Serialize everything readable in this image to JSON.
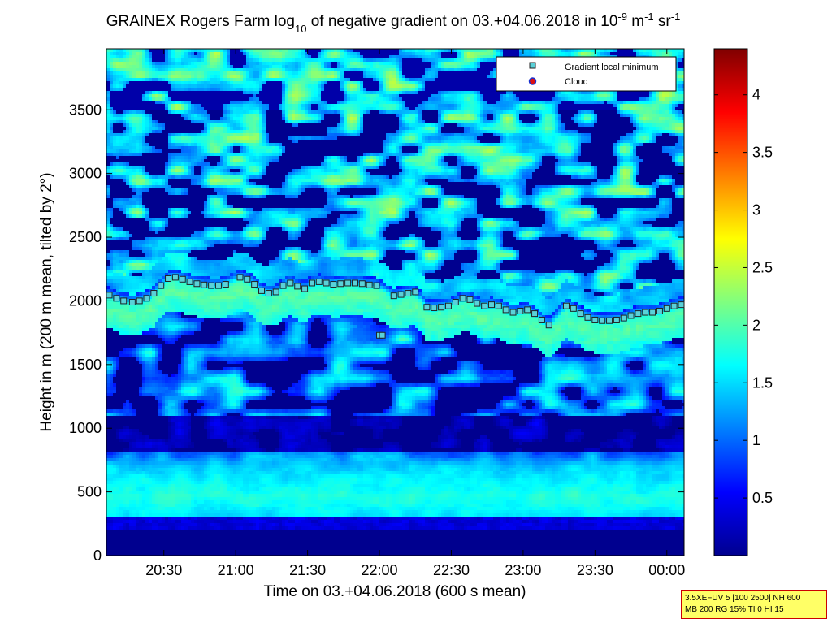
{
  "chart_data": {
    "type": "heatmap",
    "title_parts": [
      "GRAINEX Rogers Farm log",
      "10",
      " of negative gradient on 03.+04.06.2018 in 10",
      "-9",
      " m",
      "-1",
      " sr",
      "-1"
    ],
    "xlabel": "Time on 03.+04.06.2018 (600 s mean)",
    "ylabel": "Height in m (200 m mean, tilted by 2°)",
    "x_ticks": [
      "20:30",
      "21:00",
      "21:30",
      "22:00",
      "22:30",
      "23:00",
      "23:30",
      "00:00"
    ],
    "x_tick_hours": [
      20.5,
      21.0,
      21.5,
      22.0,
      22.5,
      23.0,
      23.5,
      24.0
    ],
    "xlim": [
      20.1,
      24.12
    ],
    "y_ticks": [
      "0",
      "500",
      "1000",
      "1500",
      "2000",
      "2500",
      "3000",
      "3500"
    ],
    "y_tick_values": [
      0,
      500,
      1000,
      1500,
      2000,
      2500,
      3000,
      3500
    ],
    "ylim": [
      0,
      3980
    ],
    "colorbar": {
      "ticks": [
        "0.5",
        "1",
        "1.5",
        "2",
        "2.5",
        "3",
        "3.5",
        "4"
      ],
      "tick_values": [
        0.5,
        1,
        1.5,
        2,
        2.5,
        3,
        3.5,
        4
      ],
      "range": [
        0,
        4.4
      ],
      "colormap": "jet"
    },
    "legend": {
      "placement": "top-right",
      "entries": [
        {
          "label": "Gradient local minimum",
          "marker": "square",
          "color": "#5ad1d8"
        },
        {
          "label": "Cloud",
          "marker": "circle",
          "color": "#dd1111"
        }
      ]
    },
    "series": [
      {
        "name": "Gradient local minimum",
        "points": [
          [
            20.12,
            2045
          ],
          [
            20.17,
            2020
          ],
          [
            20.22,
            2000
          ],
          [
            20.28,
            1990
          ],
          [
            20.33,
            2000
          ],
          [
            20.38,
            2020
          ],
          [
            20.43,
            2060
          ],
          [
            20.48,
            2120
          ],
          [
            20.53,
            2175
          ],
          [
            20.58,
            2185
          ],
          [
            20.63,
            2170
          ],
          [
            20.68,
            2150
          ],
          [
            20.73,
            2135
          ],
          [
            20.78,
            2125
          ],
          [
            20.83,
            2120
          ],
          [
            20.88,
            2120
          ],
          [
            20.93,
            2130
          ],
          [
            21.03,
            2185
          ],
          [
            21.08,
            2170
          ],
          [
            21.13,
            2130
          ],
          [
            21.18,
            2080
          ],
          [
            21.23,
            2060
          ],
          [
            21.28,
            2070
          ],
          [
            21.33,
            2120
          ],
          [
            21.38,
            2140
          ],
          [
            21.43,
            2115
          ],
          [
            21.48,
            2095
          ],
          [
            21.53,
            2140
          ],
          [
            21.58,
            2150
          ],
          [
            21.63,
            2140
          ],
          [
            21.68,
            2130
          ],
          [
            21.73,
            2135
          ],
          [
            21.78,
            2140
          ],
          [
            21.83,
            2140
          ],
          [
            21.88,
            2135
          ],
          [
            21.93,
            2125
          ],
          [
            21.98,
            2120
          ],
          [
            22.0,
            1730
          ],
          [
            22.02,
            1730
          ],
          [
            22.1,
            2040
          ],
          [
            22.15,
            2050
          ],
          [
            22.2,
            2060
          ],
          [
            22.25,
            2070
          ],
          [
            22.33,
            1950
          ],
          [
            22.38,
            1945
          ],
          [
            22.43,
            1950
          ],
          [
            22.48,
            1960
          ],
          [
            22.53,
            1990
          ],
          [
            22.58,
            2020
          ],
          [
            22.63,
            2010
          ],
          [
            22.68,
            1980
          ],
          [
            22.73,
            1960
          ],
          [
            22.78,
            1970
          ],
          [
            22.83,
            1960
          ],
          [
            22.88,
            1930
          ],
          [
            22.93,
            1910
          ],
          [
            22.98,
            1920
          ],
          [
            23.03,
            1930
          ],
          [
            23.08,
            1900
          ],
          [
            23.13,
            1850
          ],
          [
            23.18,
            1810
          ],
          [
            23.3,
            1960
          ],
          [
            23.35,
            1940
          ],
          [
            23.4,
            1900
          ],
          [
            23.45,
            1870
          ],
          [
            23.5,
            1850
          ],
          [
            23.55,
            1845
          ],
          [
            23.6,
            1845
          ],
          [
            23.65,
            1850
          ],
          [
            23.7,
            1865
          ],
          [
            23.75,
            1885
          ],
          [
            23.8,
            1900
          ],
          [
            23.85,
            1910
          ],
          [
            23.9,
            1910
          ],
          [
            23.95,
            1920
          ],
          [
            24.0,
            1940
          ],
          [
            24.05,
            1960
          ],
          [
            24.1,
            1970
          ]
        ]
      }
    ]
  },
  "infobox": {
    "line1": "3.5XEFUV 5 [100 2500] NH 600",
    "line2": "MB 200 RG 15% TI 0 HI 15"
  }
}
